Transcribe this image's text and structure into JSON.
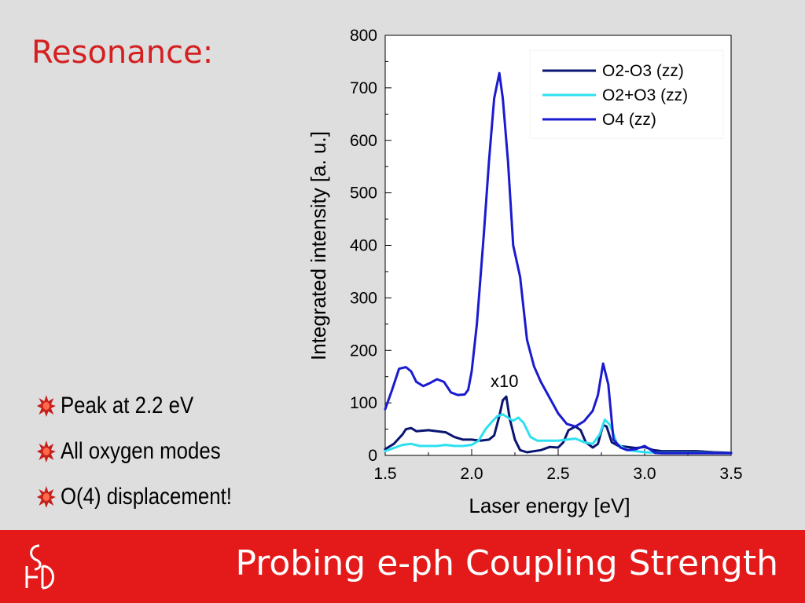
{
  "slide": {
    "title": "Resonance:",
    "bullets": [
      "Peak at 2.2 eV",
      "All oxygen modes",
      "O(4) displacement!"
    ],
    "footer": "Probing e-ph Coupling Strength",
    "bullet_icon": "red-starburst-icon",
    "logo_icon": "institution-logo-icon",
    "colors": {
      "background": "#dedede",
      "title": "#d42020",
      "footer_band": "#e41a1a",
      "footer_text": "#ffffff"
    }
  },
  "chart_data": {
    "type": "line",
    "xlabel": "Laser energy [eV]",
    "ylabel": "Integrated intensity [a. u.]",
    "xlim": [
      1.5,
      3.5
    ],
    "ylim": [
      0,
      800
    ],
    "xticks": [
      1.5,
      2.0,
      2.5,
      3.0,
      3.5
    ],
    "xtick_labels": [
      "1.5",
      "2.0",
      "2.5",
      "3.0",
      "3.5"
    ],
    "yticks": [
      0,
      100,
      200,
      300,
      400,
      500,
      600,
      700,
      800
    ],
    "ytick_labels": [
      "0",
      "100",
      "200",
      "300",
      "400",
      "500",
      "600",
      "700",
      "800"
    ],
    "grid": false,
    "legend_position": "top-right",
    "annotation": {
      "text": "x10",
      "x": 2.19,
      "y": 130
    },
    "series": [
      {
        "name": "O2-O3  (zz)",
        "color": "#0a1570",
        "points": [
          [
            1.5,
            12
          ],
          [
            1.55,
            22
          ],
          [
            1.6,
            40
          ],
          [
            1.62,
            50
          ],
          [
            1.65,
            52
          ],
          [
            1.68,
            46
          ],
          [
            1.75,
            48
          ],
          [
            1.8,
            46
          ],
          [
            1.85,
            44
          ],
          [
            1.9,
            35
          ],
          [
            1.95,
            30
          ],
          [
            2.0,
            30
          ],
          [
            2.05,
            28
          ],
          [
            2.1,
            30
          ],
          [
            2.13,
            38
          ],
          [
            2.16,
            75
          ],
          [
            2.18,
            105
          ],
          [
            2.2,
            112
          ],
          [
            2.22,
            70
          ],
          [
            2.25,
            30
          ],
          [
            2.28,
            10
          ],
          [
            2.32,
            6
          ],
          [
            2.4,
            10
          ],
          [
            2.45,
            16
          ],
          [
            2.5,
            15
          ],
          [
            2.53,
            25
          ],
          [
            2.56,
            48
          ],
          [
            2.6,
            55
          ],
          [
            2.63,
            48
          ],
          [
            2.66,
            25
          ],
          [
            2.7,
            15
          ],
          [
            2.73,
            22
          ],
          [
            2.76,
            58
          ],
          [
            2.78,
            55
          ],
          [
            2.81,
            25
          ],
          [
            2.85,
            18
          ],
          [
            2.9,
            16
          ],
          [
            2.95,
            14
          ],
          [
            3.0,
            16
          ],
          [
            3.05,
            10
          ],
          [
            3.1,
            8
          ],
          [
            3.15,
            8
          ],
          [
            3.2,
            8
          ],
          [
            3.3,
            8
          ],
          [
            3.4,
            6
          ],
          [
            3.5,
            5
          ]
        ]
      },
      {
        "name": "O2+O3 (zz)",
        "color": "#2de0f0",
        "points": [
          [
            1.5,
            8
          ],
          [
            1.55,
            14
          ],
          [
            1.6,
            20
          ],
          [
            1.65,
            22
          ],
          [
            1.7,
            18
          ],
          [
            1.8,
            18
          ],
          [
            1.85,
            20
          ],
          [
            1.9,
            18
          ],
          [
            1.95,
            18
          ],
          [
            2.0,
            20
          ],
          [
            2.04,
            28
          ],
          [
            2.08,
            50
          ],
          [
            2.12,
            65
          ],
          [
            2.15,
            75
          ],
          [
            2.18,
            78
          ],
          [
            2.2,
            74
          ],
          [
            2.24,
            66
          ],
          [
            2.27,
            72
          ],
          [
            2.3,
            62
          ],
          [
            2.34,
            35
          ],
          [
            2.38,
            28
          ],
          [
            2.45,
            28
          ],
          [
            2.5,
            28
          ],
          [
            2.55,
            30
          ],
          [
            2.6,
            32
          ],
          [
            2.65,
            25
          ],
          [
            2.7,
            22
          ],
          [
            2.74,
            40
          ],
          [
            2.77,
            68
          ],
          [
            2.8,
            58
          ],
          [
            2.84,
            22
          ],
          [
            2.9,
            10
          ],
          [
            2.95,
            8
          ],
          [
            3.0,
            6
          ],
          [
            3.1,
            5
          ],
          [
            3.2,
            5
          ],
          [
            3.3,
            5
          ],
          [
            3.5,
            4
          ]
        ]
      },
      {
        "name": "O4 (zz)",
        "color": "#1a1ad0",
        "points": [
          [
            1.5,
            88
          ],
          [
            1.54,
            125
          ],
          [
            1.58,
            165
          ],
          [
            1.62,
            168
          ],
          [
            1.65,
            160
          ],
          [
            1.68,
            140
          ],
          [
            1.72,
            132
          ],
          [
            1.76,
            138
          ],
          [
            1.8,
            145
          ],
          [
            1.84,
            140
          ],
          [
            1.88,
            120
          ],
          [
            1.92,
            115
          ],
          [
            1.96,
            116
          ],
          [
            1.98,
            125
          ],
          [
            2.0,
            160
          ],
          [
            2.03,
            250
          ],
          [
            2.07,
            420
          ],
          [
            2.1,
            560
          ],
          [
            2.13,
            680
          ],
          [
            2.16,
            728
          ],
          [
            2.18,
            680
          ],
          [
            2.21,
            560
          ],
          [
            2.24,
            400
          ],
          [
            2.28,
            340
          ],
          [
            2.32,
            220
          ],
          [
            2.36,
            170
          ],
          [
            2.4,
            140
          ],
          [
            2.45,
            110
          ],
          [
            2.5,
            80
          ],
          [
            2.55,
            60
          ],
          [
            2.6,
            55
          ],
          [
            2.65,
            65
          ],
          [
            2.7,
            85
          ],
          [
            2.73,
            115
          ],
          [
            2.76,
            175
          ],
          [
            2.79,
            135
          ],
          [
            2.82,
            30
          ],
          [
            2.86,
            15
          ],
          [
            2.9,
            10
          ],
          [
            2.95,
            12
          ],
          [
            3.0,
            18
          ],
          [
            3.03,
            12
          ],
          [
            3.06,
            5
          ],
          [
            3.1,
            4
          ],
          [
            3.2,
            4
          ],
          [
            3.3,
            4
          ],
          [
            3.5,
            4
          ]
        ]
      }
    ]
  }
}
